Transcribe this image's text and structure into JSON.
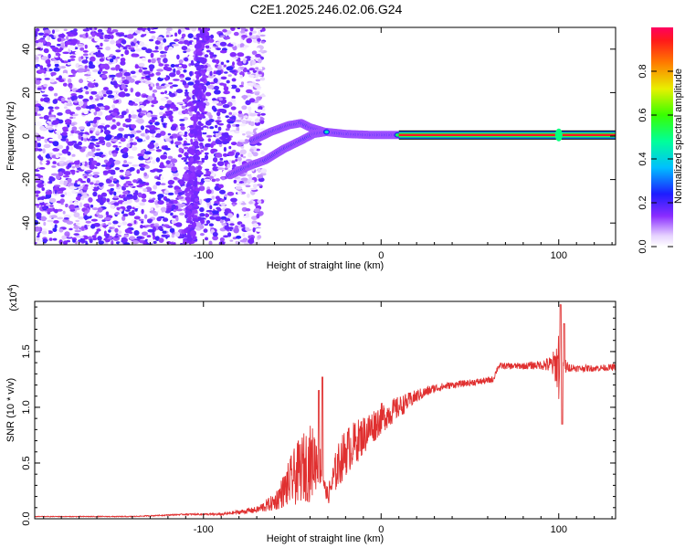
{
  "title": "C2E1.2025.246.02.06.G24",
  "chart_data": [
    {
      "type": "heatmap",
      "name": "spectrogram",
      "xlabel": "Height of straight line (km)",
      "ylabel": "Frequency (Hz)",
      "xlim": [
        -195,
        132
      ],
      "ylim": [
        -50,
        50
      ],
      "x_ticks": [
        -100,
        0,
        100
      ],
      "y_ticks": [
        -40,
        -20,
        0,
        20,
        40
      ],
      "colorbar": {
        "label": "Normalized spectral amplitude",
        "range": [
          0,
          1
        ],
        "ticks": [
          0.0,
          0.2,
          0.4,
          0.6,
          0.8
        ]
      },
      "features": [
        {
          "name": "noise region",
          "x_range": [
            -195,
            -72
          ],
          "y_range": [
            -50,
            50
          ],
          "amplitude": 0.12
        },
        {
          "name": "upper branch",
          "points": [
            [
              -72,
              -2
            ],
            [
              -62,
              2
            ],
            [
              -52,
              5
            ],
            [
              -45,
              6
            ],
            [
              -40,
              4
            ],
            [
              -32,
              2
            ],
            [
              -20,
              1
            ],
            [
              -5,
              0.5
            ],
            [
              10,
              0.5
            ]
          ],
          "amplitude": 0.45
        },
        {
          "name": "lower branch",
          "points": [
            [
              -85,
              -18
            ],
            [
              -75,
              -14
            ],
            [
              -65,
              -11
            ],
            [
              -55,
              -6
            ],
            [
              -45,
              -2
            ],
            [
              -38,
              1
            ],
            [
              -30,
              2
            ]
          ],
          "amplitude": 0.4
        },
        {
          "name": "stable line",
          "x_range": [
            10,
            132
          ],
          "y": 0.5,
          "amplitude": 0.95
        }
      ]
    },
    {
      "type": "line",
      "name": "snr",
      "xlabel": "Height of straight line (km)",
      "ylabel": "SNR (10 * v/v)",
      "y_multiplier": "(x10",
      "y_multiplier_exp": "4",
      "y_multiplier_close": ")",
      "xlim": [
        -195,
        132
      ],
      "ylim": [
        0,
        1.95
      ],
      "x_ticks": [
        -100,
        0,
        100
      ],
      "y_ticks": [
        "0.0",
        "0.5",
        "1.0",
        "1.5"
      ],
      "color": "#e03030",
      "series_envelope": {
        "x": [
          -195,
          -140,
          -110,
          -90,
          -70,
          -60,
          -55,
          -50,
          -45,
          -40,
          -35,
          -32,
          -30,
          -25,
          -20,
          -10,
          0,
          10,
          20,
          30,
          40,
          50,
          60,
          63,
          66,
          70,
          80,
          90,
          95,
          98,
          100,
          102,
          105,
          110,
          120,
          132
        ],
        "y": [
          0.02,
          0.02,
          0.04,
          0.04,
          0.08,
          0.15,
          0.25,
          0.35,
          0.45,
          0.5,
          0.55,
          0.3,
          0.2,
          0.45,
          0.6,
          0.75,
          0.9,
          1.0,
          1.1,
          1.17,
          1.2,
          1.22,
          1.24,
          1.25,
          1.37,
          1.37,
          1.37,
          1.38,
          1.38,
          1.38,
          1.4,
          1.38,
          1.36,
          1.35,
          1.35,
          1.36
        ],
        "noise": [
          0.003,
          0.004,
          0.006,
          0.01,
          0.03,
          0.08,
          0.15,
          0.25,
          0.3,
          0.35,
          0.25,
          0.06,
          0.08,
          0.2,
          0.22,
          0.18,
          0.14,
          0.1,
          0.06,
          0.04,
          0.03,
          0.03,
          0.03,
          0.03,
          0.03,
          0.03,
          0.03,
          0.04,
          0.08,
          0.15,
          0.35,
          0.15,
          0.04,
          0.03,
          0.03,
          0.03
        ]
      },
      "peaks": [
        [
          -33,
          1.27
        ],
        [
          -35,
          1.15
        ],
        [
          101,
          1.92
        ],
        [
          102,
          0.85
        ],
        [
          103,
          1.75
        ]
      ]
    }
  ]
}
